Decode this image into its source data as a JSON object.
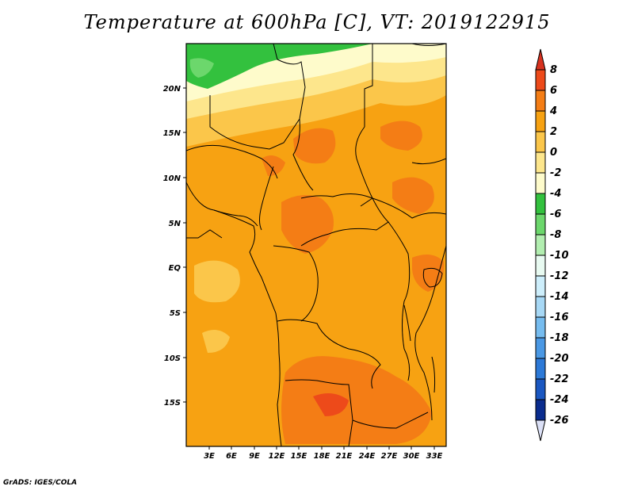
{
  "title": "Temperature at 600hPa [C], VT: 2019122915",
  "credit": "GrADS: IGES/COLA",
  "lat_ticks": [
    "20N",
    "15N",
    "10N",
    "5N",
    "EQ",
    "5S",
    "10S",
    "15S"
  ],
  "lon_ticks": [
    "3E",
    "6E",
    "9E",
    "12E",
    "15E",
    "18E",
    "21E",
    "24E",
    "27E",
    "30E",
    "33E"
  ],
  "colorbar": {
    "labels": [
      "8",
      "6",
      "4",
      "2",
      "0",
      "-2",
      "-4",
      "-6",
      "-8",
      "-10",
      "-12",
      "-14",
      "-16",
      "-18",
      "-20",
      "-22",
      "-24",
      "-26"
    ],
    "colors": [
      "#d7321f",
      "#ed4a1a",
      "#f47d15",
      "#f7a212",
      "#fbc64a",
      "#fde68c",
      "#fefbcb",
      "#33c13e",
      "#6cd76c",
      "#b2eeb0",
      "#e8faf1",
      "#cdeefb",
      "#a7d8f5",
      "#76bcef",
      "#4a98e4",
      "#2c79d7",
      "#1a57c1",
      "#0a2c8e",
      "#dbe0f6"
    ]
  },
  "map": {
    "type": "filled-contour",
    "variable": "Temperature",
    "level": "600hPa",
    "units": "C",
    "valid_time": "2019122915",
    "lat_range": [
      "-20",
      "24.5"
    ],
    "lon_range": [
      "0",
      "34.5"
    ]
  }
}
